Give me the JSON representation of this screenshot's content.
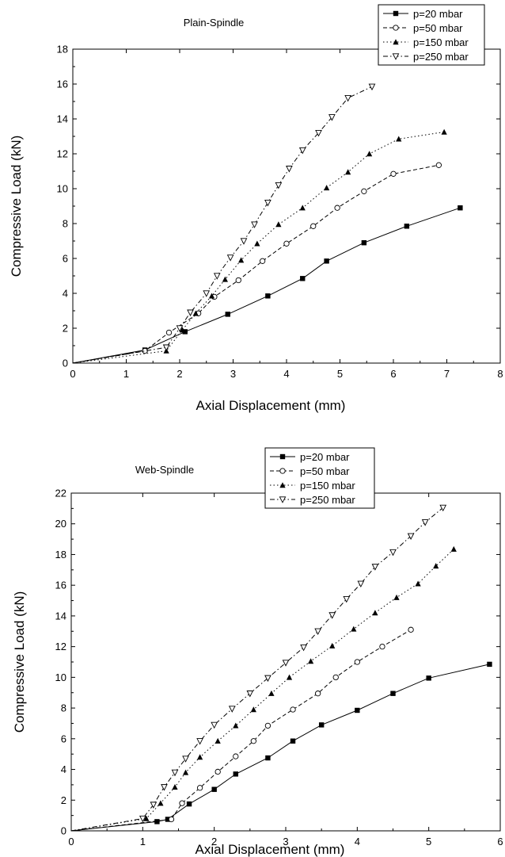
{
  "chart_data": [
    {
      "type": "line",
      "title": "Plain-Spindle",
      "xlabel": "Axial Displacement (mm)",
      "ylabel": "Compressive Load (kN)",
      "xlim": [
        0,
        8
      ],
      "ylim": [
        0,
        18
      ],
      "xticks": [
        "0",
        "1",
        "2",
        "3",
        "4",
        "5",
        "6",
        "7",
        "8"
      ],
      "yticks": [
        "0",
        "2",
        "4",
        "6",
        "8",
        "10",
        "12",
        "14",
        "16",
        "18"
      ],
      "grid": false,
      "legend_position": "top-right",
      "series": [
        {
          "name": "p=20 mbar",
          "marker": "filled-square",
          "line": "solid",
          "points": [
            [
              0,
              0
            ],
            [
              1.35,
              0.75
            ],
            [
              2.1,
              1.8
            ],
            [
              2.9,
              2.8
            ],
            [
              3.65,
              3.85
            ],
            [
              4.3,
              4.85
            ],
            [
              4.75,
              5.85
            ],
            [
              5.45,
              6.9
            ],
            [
              6.25,
              7.85
            ],
            [
              7.25,
              8.9
            ]
          ]
        },
        {
          "name": "p=50 mbar",
          "marker": "open-circle",
          "line": "dashed",
          "points": [
            [
              0,
              0
            ],
            [
              1.35,
              0.7
            ],
            [
              1.8,
              1.75
            ],
            [
              2.35,
              2.85
            ],
            [
              2.65,
              3.8
            ],
            [
              3.1,
              4.75
            ],
            [
              3.55,
              5.85
            ],
            [
              4.0,
              6.85
            ],
            [
              4.5,
              7.85
            ],
            [
              4.95,
              8.9
            ],
            [
              5.45,
              9.85
            ],
            [
              6.0,
              10.85
            ],
            [
              6.85,
              11.35
            ]
          ]
        },
        {
          "name": "p=150 mbar",
          "marker": "filled-triangle",
          "line": "dotted",
          "points": [
            [
              0,
              0
            ],
            [
              1.75,
              0.7
            ],
            [
              2.05,
              1.9
            ],
            [
              2.3,
              2.85
            ],
            [
              2.6,
              3.85
            ],
            [
              2.85,
              4.8
            ],
            [
              3.15,
              5.9
            ],
            [
              3.45,
              6.85
            ],
            [
              3.85,
              7.95
            ],
            [
              4.3,
              8.9
            ],
            [
              4.75,
              10.05
            ],
            [
              5.15,
              10.95
            ],
            [
              5.55,
              12.0
            ],
            [
              6.1,
              12.85
            ],
            [
              6.95,
              13.25
            ]
          ]
        },
        {
          "name": "p=250 mbar",
          "marker": "open-down-triangle",
          "line": "dash-dot",
          "points": [
            [
              0,
              0
            ],
            [
              1.75,
              0.9
            ],
            [
              2.0,
              2.0
            ],
            [
              2.2,
              2.9
            ],
            [
              2.5,
              4.0
            ],
            [
              2.7,
              5.0
            ],
            [
              2.95,
              6.05
            ],
            [
              3.2,
              7.0
            ],
            [
              3.4,
              7.95
            ],
            [
              3.65,
              9.2
            ],
            [
              3.85,
              10.2
            ],
            [
              4.05,
              11.15
            ],
            [
              4.3,
              12.2
            ],
            [
              4.6,
              13.2
            ],
            [
              4.85,
              14.1
            ],
            [
              5.15,
              15.2
            ],
            [
              5.6,
              15.85
            ]
          ]
        }
      ]
    },
    {
      "type": "line",
      "title": "Web-Spindle",
      "xlabel": "Axial Displacement (mm)",
      "ylabel": "Compressive Load (kN)",
      "xlim": [
        0,
        6
      ],
      "ylim": [
        0,
        22
      ],
      "xticks": [
        "0",
        "1",
        "2",
        "3",
        "4",
        "5",
        "6"
      ],
      "yticks": [
        "0",
        "2",
        "4",
        "6",
        "8",
        "10",
        "12",
        "14",
        "16",
        "18",
        "20",
        "22"
      ],
      "grid": false,
      "legend_position": "top-center",
      "series": [
        {
          "name": "p=20 mbar",
          "marker": "filled-square",
          "line": "solid",
          "points": [
            [
              0,
              0
            ],
            [
              1.2,
              0.6
            ],
            [
              1.35,
              0.75
            ],
            [
              1.65,
              1.75
            ],
            [
              2.0,
              2.7
            ],
            [
              2.3,
              3.7
            ],
            [
              2.75,
              4.75
            ],
            [
              3.1,
              5.85
            ],
            [
              3.5,
              6.9
            ],
            [
              4.0,
              7.85
            ],
            [
              4.5,
              8.95
            ],
            [
              5.0,
              9.95
            ],
            [
              5.85,
              10.85
            ]
          ]
        },
        {
          "name": "p=50 mbar",
          "marker": "open-circle",
          "line": "dashed",
          "points": [
            [
              0,
              0
            ],
            [
              1.4,
              0.75
            ],
            [
              1.55,
              1.8
            ],
            [
              1.8,
              2.8
            ],
            [
              2.05,
              3.85
            ],
            [
              2.3,
              4.85
            ],
            [
              2.55,
              5.85
            ],
            [
              2.75,
              6.85
            ],
            [
              3.1,
              7.9
            ],
            [
              3.45,
              8.95
            ],
            [
              3.7,
              10.0
            ],
            [
              4.0,
              11.0
            ],
            [
              4.35,
              12.0
            ],
            [
              4.75,
              13.1
            ]
          ]
        },
        {
          "name": "p=150 mbar",
          "marker": "filled-triangle",
          "line": "dotted",
          "points": [
            [
              0,
              0
            ],
            [
              1.05,
              0.8
            ],
            [
              1.25,
              1.8
            ],
            [
              1.45,
              2.85
            ],
            [
              1.6,
              3.8
            ],
            [
              1.8,
              4.8
            ],
            [
              2.05,
              5.85
            ],
            [
              2.3,
              6.85
            ],
            [
              2.55,
              7.9
            ],
            [
              2.8,
              8.95
            ],
            [
              3.05,
              10.0
            ],
            [
              3.35,
              11.05
            ],
            [
              3.65,
              12.05
            ],
            [
              3.95,
              13.15
            ],
            [
              4.25,
              14.2
            ],
            [
              4.55,
              15.2
            ],
            [
              4.85,
              16.1
            ],
            [
              5.1,
              17.25
            ],
            [
              5.35,
              18.35
            ]
          ]
        },
        {
          "name": "p=250 mbar",
          "marker": "open-down-triangle",
          "line": "dash-dot",
          "points": [
            [
              0,
              0
            ],
            [
              1.0,
              0.8
            ],
            [
              1.15,
              1.7
            ],
            [
              1.3,
              2.85
            ],
            [
              1.45,
              3.8
            ],
            [
              1.6,
              4.7
            ],
            [
              1.8,
              5.85
            ],
            [
              2.0,
              6.9
            ],
            [
              2.25,
              7.95
            ],
            [
              2.5,
              8.95
            ],
            [
              2.75,
              9.95
            ],
            [
              3.0,
              10.95
            ],
            [
              3.25,
              11.95
            ],
            [
              3.45,
              13.0
            ],
            [
              3.65,
              14.05
            ],
            [
              3.85,
              15.1
            ],
            [
              4.05,
              16.1
            ],
            [
              4.25,
              17.2
            ],
            [
              4.5,
              18.15
            ],
            [
              4.75,
              19.2
            ],
            [
              4.95,
              20.1
            ],
            [
              5.2,
              21.05
            ]
          ]
        }
      ]
    }
  ]
}
